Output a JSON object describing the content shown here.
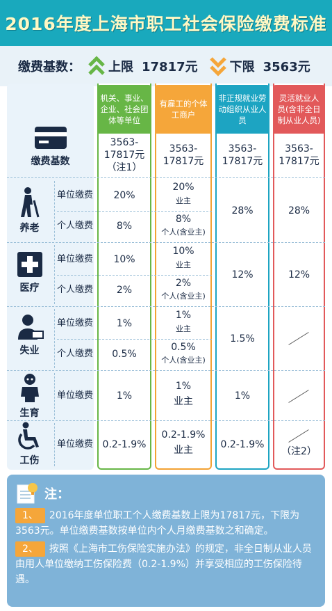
{
  "title": "2016年度上海市职工社会保险缴费标准",
  "base": {
    "label": "缴费基数：",
    "upper_label": "上限",
    "upper_value": "17817元",
    "lower_label": "下限",
    "lower_value": "3563元"
  },
  "columns": [
    "机关、事业、企业、社会团体等单位",
    "有雇工的个体工商户",
    "非正规就业劳动组织从业人员",
    "灵活就业人员(含非全日制从业人员)"
  ],
  "base_row": {
    "label": "缴费基数",
    "values": [
      "3563-17817元（注1）",
      "3563-17817元",
      "3563-17817元",
      "3563-17817元"
    ]
  },
  "sub_labels": {
    "unit": "单位缴费",
    "personal": "个人缴费"
  },
  "categories": {
    "pension": {
      "name": "养老",
      "unit": "20%",
      "personal": "8%",
      "hu_unit": "20%",
      "hu_unit_note": "业主",
      "hu_personal": "8%",
      "hu_personal_note": "个人(含业主)",
      "informal": "28%",
      "flexible": "28%"
    },
    "medical": {
      "name": "医疗",
      "unit": "10%",
      "personal": "2%",
      "hu_unit": "10%",
      "hu_unit_note": "业主",
      "hu_personal": "2%",
      "hu_personal_note": "个人(含业主)",
      "informal": "12%",
      "flexible": "12%"
    },
    "unemployment": {
      "name": "失业",
      "unit": "1%",
      "personal": "0.5%",
      "hu_unit": "1%",
      "hu_unit_note": "业主",
      "hu_personal": "0.5%",
      "hu_personal_note": "个人(含业主)",
      "informal": "1.5%"
    },
    "maternity": {
      "name": "生育",
      "unit": "1%",
      "hu_unit": "1%",
      "hu_unit_note": "业主",
      "informal": "1%"
    },
    "injury": {
      "name": "工伤",
      "unit": "0.2-1.9%",
      "hu_unit": "0.2-1.9%",
      "hu_unit_note": "业主",
      "informal": "0.2-1.9%",
      "flexible_note": "（注2）"
    }
  },
  "notes": {
    "heading": "注：",
    "items": [
      {
        "tag": "1、",
        "text": "2016年度单位职工个人缴费基数上限为17817元，下限为3563元。单位缴费基数按单位内个人月缴费基数之和确定。"
      },
      {
        "tag": "2、",
        "text": "按照《上海市工伤保险实施办法》的规定，非全日制从业人员由用人单位缴纳工伤保险费（0.2-1.9%）并享受相应的工伤保险待遇。"
      }
    ]
  },
  "colors": {
    "title_bg": "#19a9bd",
    "green": "#67b646",
    "orange": "#f5a63a",
    "blue": "#1da4c2",
    "red": "#e2595a",
    "notes_bg": "#7fb3d8"
  }
}
